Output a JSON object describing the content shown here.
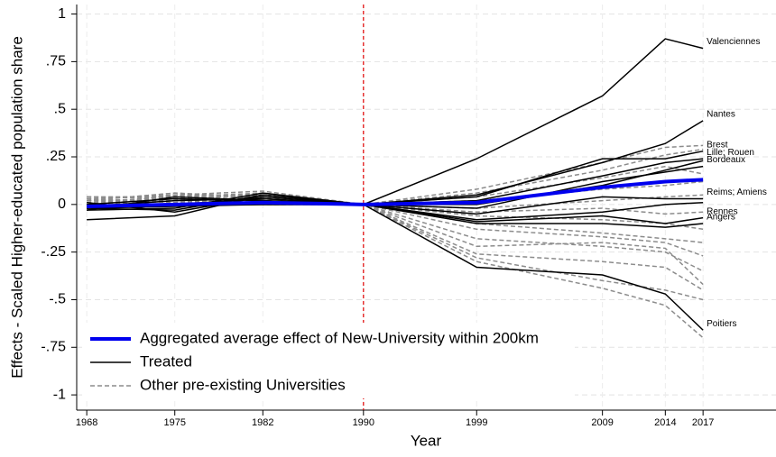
{
  "chart_data": {
    "type": "line",
    "x_label": "Year",
    "y_label": "Effects - Scaled Higher-educated population share",
    "x": [
      1968,
      1975,
      1982,
      1990,
      1999,
      2009,
      2014,
      2017
    ],
    "xlim": [
      1967.2,
      2022.8
    ],
    "xticks": [
      1968,
      1975,
      1982,
      1990,
      1999,
      2009,
      2014,
      2017
    ],
    "ylim": [
      -1.08,
      1.05
    ],
    "yticks": [
      1,
      {
        "value": 0.75,
        "label": ".75"
      },
      {
        "value": 0.5,
        "label": ".5"
      },
      {
        "value": 0.25,
        "label": ".25"
      },
      0,
      {
        "value": -0.25,
        "label": "-.25"
      },
      {
        "value": -0.5,
        "label": "-.5"
      },
      {
        "value": -0.75,
        "label": "-.75"
      },
      -1
    ],
    "grid": true,
    "vline": {
      "value": 1990,
      "color": "#e00000"
    },
    "legend": "bottom-left",
    "series": [
      {
        "name": "Aggregated average effect of New-University within 200km",
        "color": "#0000ee",
        "width": 4,
        "lines": [
          {
            "values": [
              -0.01,
              0.0,
              0.01,
              0,
              0.01,
              0.09,
              0.12,
              0.13
            ]
          }
        ]
      },
      {
        "name": "Treated",
        "color": "#000000",
        "width": 1.5,
        "lines": [
          {
            "label": "Valenciennes",
            "values": [
              -0.02,
              0.0,
              0.03,
              0,
              0.24,
              0.57,
              0.87,
              0.82
            ]
          },
          {
            "label": "Nantes",
            "values": [
              -0.02,
              -0.03,
              0.05,
              0,
              0.05,
              0.22,
              0.32,
              0.44
            ]
          },
          {
            "label": "Brest",
            "values": [
              0.0,
              0.03,
              0.02,
              0,
              0.04,
              0.24,
              0.24,
              0.28
            ]
          },
          {
            "label": "Lille;  Rouen",
            "values": [
              -0.03,
              -0.02,
              0.06,
              0,
              0.02,
              0.15,
              0.22,
              0.24
            ]
          },
          {
            "values": [
              -0.01,
              0.02,
              0.03,
              0,
              0.0,
              0.1,
              0.18,
              0.23
            ]
          },
          {
            "label": "Bordeaux",
            "values": [
              -0.02,
              -0.01,
              0.0,
              0,
              -0.02,
              0.12,
              0.17,
              0.2
            ]
          },
          {
            "label": "Reims; Amiens",
            "values": [
              -0.08,
              -0.06,
              0.05,
              0,
              -0.05,
              0.04,
              0.03,
              0.03
            ]
          },
          {
            "values": [
              -0.03,
              0.04,
              0.02,
              0,
              -0.08,
              -0.04,
              0.0,
              0.01
            ]
          },
          {
            "label": "Rennes",
            "values": [
              0.01,
              -0.04,
              0.04,
              0,
              -0.09,
              -0.06,
              -0.1,
              -0.07
            ]
          },
          {
            "label": "Angers",
            "values": [
              -0.02,
              0.0,
              0.0,
              0,
              -0.1,
              -0.1,
              -0.12,
              -0.1
            ]
          },
          {
            "label": "Poitiers",
            "values": [
              -0.01,
              0.0,
              0.0,
              0,
              -0.33,
              -0.37,
              -0.47,
              -0.66
            ]
          }
        ]
      },
      {
        "name": "Other pre-existing Universities",
        "color": "#8c8c8c",
        "width": 1.5,
        "dash": true,
        "lines": [
          {
            "values": [
              0.03,
              0.05,
              0.07,
              0,
              0.08,
              0.22,
              0.3,
              0.31
            ]
          },
          {
            "values": [
              0.02,
              0.06,
              0.04,
              0,
              0.06,
              0.18,
              0.26,
              0.29
            ]
          },
          {
            "values": [
              0.04,
              0.03,
              0.05,
              0,
              0.04,
              0.14,
              0.2,
              0.16
            ]
          },
          {
            "values": [
              0.01,
              0.04,
              0.06,
              0,
              0.02,
              0.08,
              0.1,
              0.12
            ]
          },
          {
            "values": [
              0.02,
              0.02,
              0.03,
              0,
              -0.02,
              0.02,
              0.04,
              0.05
            ]
          },
          {
            "values": [
              -0.01,
              0.05,
              0.02,
              0,
              -0.04,
              -0.02,
              -0.05,
              -0.04
            ]
          },
          {
            "values": [
              0.03,
              0.01,
              0.04,
              0,
              -0.06,
              -0.08,
              -0.1,
              -0.13
            ]
          },
          {
            "values": [
              0.0,
              0.03,
              0.01,
              0,
              -0.1,
              -0.15,
              -0.18,
              -0.2
            ]
          },
          {
            "values": [
              0.02,
              0.06,
              0.03,
              0,
              -0.13,
              -0.17,
              -0.2,
              -0.27
            ]
          },
          {
            "values": [
              0.01,
              0.0,
              0.05,
              0,
              -0.18,
              -0.22,
              -0.25,
              -0.35
            ]
          },
          {
            "values": [
              0.04,
              0.04,
              0.0,
              0,
              -0.22,
              -0.2,
              -0.23,
              -0.42
            ]
          },
          {
            "values": [
              -0.01,
              0.02,
              0.06,
              0,
              -0.26,
              -0.3,
              -0.33,
              -0.45
            ]
          },
          {
            "values": [
              0.02,
              0.03,
              0.02,
              0,
              -0.28,
              -0.4,
              -0.45,
              -0.5
            ]
          },
          {
            "values": [
              0.0,
              0.05,
              0.04,
              0,
              -0.3,
              -0.44,
              -0.53,
              -0.7
            ]
          }
        ]
      }
    ]
  }
}
